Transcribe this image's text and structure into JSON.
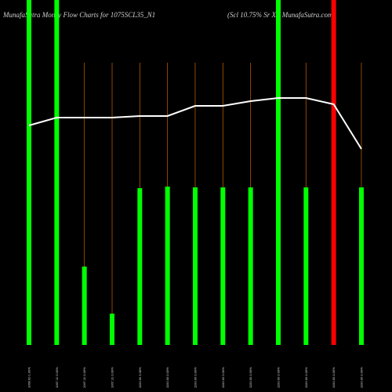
{
  "chart_data": {
    "type": "bar",
    "title": "MunafaSutra Money Flow Charts for 1075SCL35_N1",
    "subtitle": "(Scl 10.75% Sr Xi) MunafaSutra.com",
    "categories": [
      "1068.00 1.00%",
      "1067.11 0.00%",
      "1067.11 0.00%",
      "1067.11 0.00%",
      "1100.00 3.08%",
      "1100.00 0.00%",
      "1100.00 0.00%",
      "1100.00 0.00%",
      "1100.00 0.00%",
      "1100.00 0.00%",
      "1100.00 0.00%",
      "1100.00 0.00%",
      "1100.00 0.00%"
    ],
    "values": [
      440,
      440,
      100,
      40,
      200,
      202,
      201,
      201,
      201,
      440,
      201,
      440,
      201
    ],
    "colors": [
      "#00ff00",
      "#00ff00",
      "#00ff00",
      "#00ff00",
      "#00ff00",
      "#00ff00",
      "#00ff00",
      "#00ff00",
      "#00ff00",
      "#00ff00",
      "#00ff00",
      "#ff0000",
      "#00ff00"
    ],
    "line": {
      "color": "#ffffff",
      "values": [
        280,
        290,
        290,
        290,
        292,
        292,
        305,
        305,
        311,
        315,
        315,
        307,
        250
      ]
    },
    "ylim": [
      0,
      440
    ],
    "guide_color": "#b35900"
  }
}
